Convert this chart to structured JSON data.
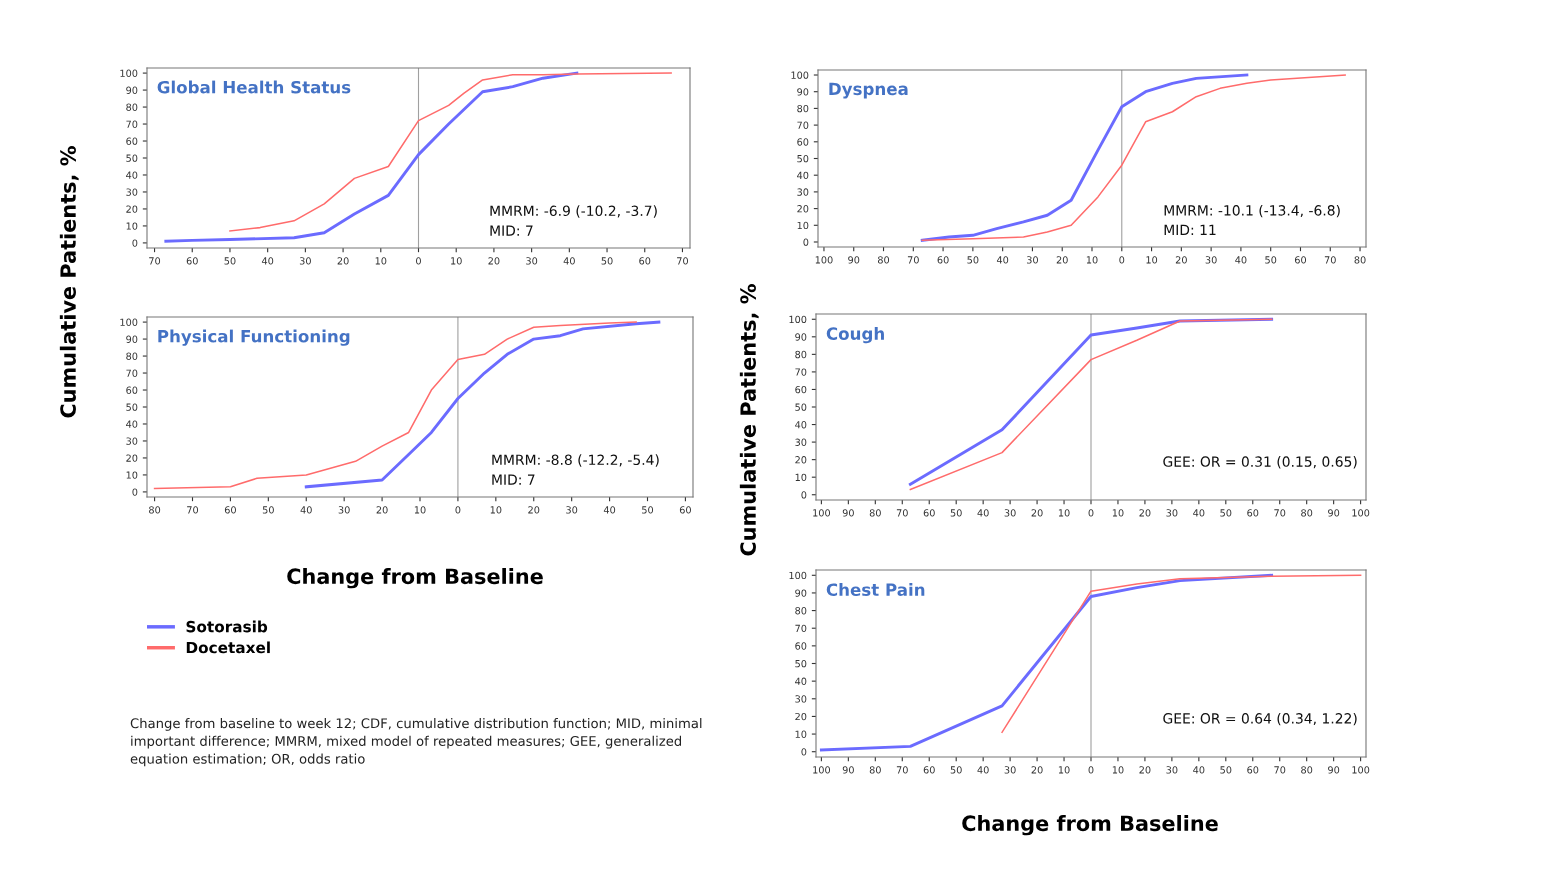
{
  "chart_data": [
    {
      "type": "line",
      "title": "Global Health Status",
      "ylabel": "Cumulative Patients, %",
      "legend": "bottom left",
      "xlim": [
        -72,
        72
      ],
      "xticks": [
        {
          "value": -70,
          "label": "70"
        },
        {
          "value": -60,
          "label": "60"
        },
        {
          "value": -50,
          "label": "50"
        },
        {
          "value": -40,
          "label": "40"
        },
        {
          "value": -30,
          "label": "30"
        },
        {
          "value": -20,
          "label": "20"
        },
        {
          "value": -10,
          "label": "10"
        },
        0,
        10,
        20,
        30,
        40,
        50,
        60,
        70
      ],
      "ylim": [
        -3,
        103
      ],
      "yticks": [
        0,
        10,
        20,
        30,
        40,
        50,
        60,
        70,
        80,
        90,
        100
      ],
      "ref_lines": [
        {
          "axis": "x",
          "value": 0,
          "color": "#a0a0a0"
        }
      ],
      "annotations": [
        "MMRM: -6.9 (-10.2, -3.7)",
        "MID: 7"
      ],
      "series": [
        {
          "name": "Sotorasib",
          "color": "#6b6bff",
          "x": [
            -67,
            -60,
            -50,
            -33,
            -25,
            -17,
            -8,
            0,
            8,
            17,
            25,
            33,
            42
          ],
          "values": [
            1,
            1.5,
            2,
            3,
            6,
            17,
            28,
            52,
            70,
            89,
            92,
            97,
            100
          ]
        },
        {
          "name": "Docetaxel",
          "color": "#ff6b6b",
          "x": [
            -50,
            -42,
            -33,
            -25,
            -17,
            -8,
            0,
            8,
            12,
            17,
            25,
            33,
            42,
            67
          ],
          "values": [
            7,
            9,
            13,
            23,
            38,
            45,
            72,
            81,
            88,
            96,
            99,
            99,
            99.5,
            100
          ]
        }
      ]
    },
    {
      "type": "line",
      "title": "Physical Functioning",
      "xlabel": "Change from Baseline",
      "xlim": [
        -82,
        62
      ],
      "xticks": [
        {
          "value": -80,
          "label": "80"
        },
        {
          "value": -70,
          "label": "70"
        },
        {
          "value": -60,
          "label": "60"
        },
        {
          "value": -50,
          "label": "50"
        },
        {
          "value": -40,
          "label": "40"
        },
        {
          "value": -30,
          "label": "30"
        },
        {
          "value": -20,
          "label": "20"
        },
        {
          "value": -10,
          "label": "10"
        },
        0,
        10,
        20,
        30,
        40,
        50,
        60
      ],
      "ylim": [
        -3,
        103
      ],
      "yticks": [
        0,
        10,
        20,
        30,
        40,
        50,
        60,
        70,
        80,
        90,
        100
      ],
      "ref_lines": [
        {
          "axis": "x",
          "value": 0,
          "color": "#a0a0a0"
        }
      ],
      "annotations": [
        "MMRM: -8.8 (-12.2, -5.4)",
        "MID: 7",
        "Change from baseline to week 12; CDF, cumulative distribution function; MID, minimal important difference; MMRM, mixed model of repeated measures; GEE, generalized equation estimation; OR, odds ratio"
      ],
      "series": [
        {
          "color": "#6b6bff",
          "x": [
            -40,
            -20,
            -13,
            -7,
            0,
            7,
            13,
            20,
            27,
            33,
            47,
            53
          ],
          "values": [
            3,
            7,
            22,
            35,
            55,
            70,
            81,
            90,
            92,
            96,
            99,
            100
          ]
        },
        {
          "color": "#ff6b6b",
          "x": [
            -80,
            -60,
            -53,
            -40,
            -27,
            -20,
            -13,
            -7,
            0,
            7,
            13,
            20,
            27,
            40,
            47
          ],
          "values": [
            2,
            3,
            8,
            10,
            18,
            27,
            35,
            60,
            78,
            81,
            90,
            97,
            98,
            99.5,
            100
          ]
        }
      ]
    },
    {
      "type": "line",
      "title": "Dyspnea",
      "xlim": [
        -102,
        82
      ],
      "xticks": [
        {
          "value": -100,
          "label": "100"
        },
        {
          "value": -90,
          "label": "90"
        },
        {
          "value": -80,
          "label": "80"
        },
        {
          "value": -70,
          "label": "70"
        },
        {
          "value": -60,
          "label": "60"
        },
        {
          "value": -50,
          "label": "50"
        },
        {
          "value": -40,
          "label": "40"
        },
        {
          "value": -30,
          "label": "30"
        },
        {
          "value": -20,
          "label": "20"
        },
        {
          "value": -10,
          "label": "10"
        },
        0,
        10,
        20,
        30,
        40,
        50,
        60,
        70,
        80
      ],
      "ylim": [
        -3,
        103
      ],
      "yticks": [
        0,
        10,
        20,
        30,
        40,
        50,
        60,
        70,
        80,
        90,
        100
      ],
      "ref_lines": [
        {
          "axis": "x",
          "value": 0,
          "color": "#a0a0a0"
        }
      ],
      "annotations": [
        "MMRM: -10.1 (-13.4, -6.8)",
        "MID: 11"
      ],
      "series": [
        {
          "color": "#6b6bff",
          "x": [
            -67,
            -58,
            -50,
            -42,
            -33,
            -25,
            -17,
            -8,
            0,
            8,
            17,
            25,
            42
          ],
          "values": [
            1,
            3,
            4,
            8,
            12,
            16,
            25,
            55,
            81,
            90,
            95,
            98,
            100
          ]
        },
        {
          "color": "#ff6b6b",
          "x": [
            -67,
            -50,
            -33,
            -25,
            -17,
            -8,
            0,
            8,
            17,
            25,
            33,
            42,
            50,
            75
          ],
          "values": [
            1,
            2,
            3,
            6,
            10,
            27,
            46,
            72,
            78,
            87,
            92,
            95,
            97,
            100
          ]
        }
      ]
    },
    {
      "type": "line",
      "title": "Cough",
      "ylabel": "Cumulative Patients, %",
      "xlim": [
        -102,
        102
      ],
      "xticks": [
        {
          "value": -100,
          "label": "100"
        },
        {
          "value": -90,
          "label": "90"
        },
        {
          "value": -80,
          "label": "80"
        },
        {
          "value": -70,
          "label": "70"
        },
        {
          "value": -60,
          "label": "60"
        },
        {
          "value": -50,
          "label": "50"
        },
        {
          "value": -40,
          "label": "40"
        },
        {
          "value": -30,
          "label": "30"
        },
        {
          "value": -20,
          "label": "20"
        },
        {
          "value": -10,
          "label": "10"
        },
        0,
        10,
        20,
        30,
        40,
        50,
        60,
        70,
        80,
        90,
        100
      ],
      "ylim": [
        -3,
        103
      ],
      "yticks": [
        0,
        10,
        20,
        30,
        40,
        50,
        60,
        70,
        80,
        90,
        100
      ],
      "ref_lines": [
        {
          "axis": "x",
          "value": 0,
          "color": "#a0a0a0"
        }
      ],
      "annotations": [
        "GEE: OR = 0.31 (0.15, 0.65)"
      ],
      "series": [
        {
          "color": "#6b6bff",
          "x": [
            -67,
            -33,
            0,
            17,
            33,
            67
          ],
          "values": [
            6,
            37,
            91,
            95,
            99,
            100
          ]
        },
        {
          "color": "#ff6b6b",
          "x": [
            -67,
            -33,
            0,
            17,
            33,
            67
          ],
          "values": [
            3,
            24,
            77,
            88,
            99,
            100
          ]
        }
      ]
    },
    {
      "type": "line",
      "title": "Chest Pain",
      "xlabel": "Change from Baseline",
      "xlim": [
        -102,
        102
      ],
      "xticks": [
        {
          "value": -100,
          "label": "100"
        },
        {
          "value": -90,
          "label": "90"
        },
        {
          "value": -80,
          "label": "80"
        },
        {
          "value": -70,
          "label": "70"
        },
        {
          "value": -60,
          "label": "60"
        },
        {
          "value": -50,
          "label": "50"
        },
        {
          "value": -40,
          "label": "40"
        },
        {
          "value": -30,
          "label": "30"
        },
        {
          "value": -20,
          "label": "20"
        },
        {
          "value": -10,
          "label": "10"
        },
        0,
        10,
        20,
        30,
        40,
        50,
        60,
        70,
        80,
        90,
        100
      ],
      "ylim": [
        -3,
        103
      ],
      "yticks": [
        0,
        10,
        20,
        30,
        40,
        50,
        60,
        70,
        80,
        90,
        100
      ],
      "ref_lines": [
        {
          "axis": "x",
          "value": 0,
          "color": "#a0a0a0"
        }
      ],
      "annotations": [
        "GEE: OR = 0.64 (0.34, 1.22)"
      ],
      "series": [
        {
          "color": "#6b6bff",
          "x": [
            -100,
            -67,
            -33,
            0,
            17,
            33,
            67
          ],
          "values": [
            1,
            3,
            26,
            88,
            93,
            97,
            100
          ]
        },
        {
          "color": "#ff6b6b",
          "x": [
            -33,
            0,
            17,
            33,
            67,
            100
          ],
          "values": [
            11,
            91,
            95,
            98,
            99.5,
            100
          ]
        }
      ]
    }
  ]
}
